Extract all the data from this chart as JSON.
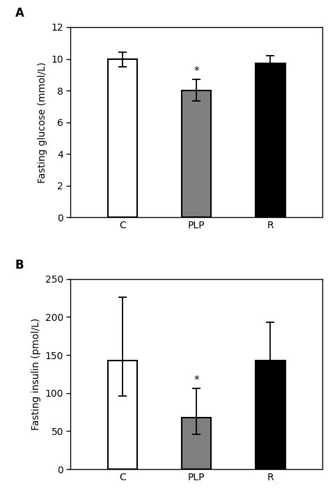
{
  "panel_A": {
    "title": "A",
    "ylabel": "Fasting glucose (mmol/L)",
    "categories": [
      "C",
      "PLP",
      "R"
    ],
    "values": [
      10.0,
      8.0,
      9.7
    ],
    "errors_up": [
      0.4,
      0.7,
      0.5
    ],
    "errors_down": [
      0.5,
      0.65,
      0.45
    ],
    "bar_colors": [
      "#ffffff",
      "#7f7f7f",
      "#000000"
    ],
    "bar_edgecolors": [
      "#000000",
      "#000000",
      "#000000"
    ],
    "ylim": [
      0,
      12
    ],
    "yticks": [
      0,
      2,
      4,
      6,
      8,
      10,
      12
    ],
    "significance": [
      false,
      true,
      false
    ]
  },
  "panel_B": {
    "title": "B",
    "ylabel": "Fasting insulin (pmol/L)",
    "categories": [
      "C",
      "PLP",
      "R"
    ],
    "values": [
      143,
      68,
      143
    ],
    "errors_up": [
      83,
      38,
      50
    ],
    "errors_down": [
      47,
      22,
      38
    ],
    "bar_colors": [
      "#ffffff",
      "#7f7f7f",
      "#000000"
    ],
    "bar_edgecolors": [
      "#000000",
      "#000000",
      "#000000"
    ],
    "ylim": [
      0,
      250
    ],
    "yticks": [
      0,
      50,
      100,
      150,
      200,
      250
    ],
    "significance": [
      false,
      true,
      false
    ]
  },
  "bar_width": 0.4,
  "figure_bg": "#ffffff",
  "axes_bg": "#ffffff",
  "fontsize_label": 10,
  "fontsize_tick": 10,
  "fontsize_panel": 12,
  "fontsize_sig": 11,
  "elinewidth": 1.3,
  "ecapsize": 4,
  "ecapthick": 1.3
}
